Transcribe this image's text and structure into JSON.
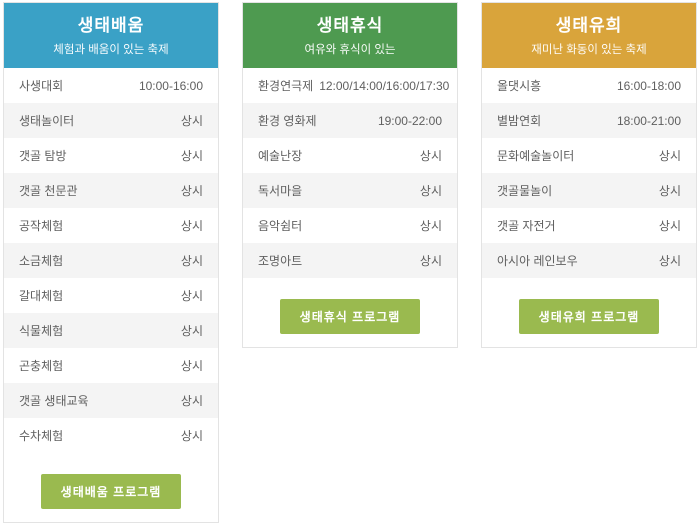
{
  "theme": {
    "page_background": "#ffffff",
    "button_color": "#9aba4f",
    "row_alt_color": "#f4f4f4",
    "row_text_color": "#5f5f5f",
    "card_border_color": "#e3e3e3",
    "always_label": "상시"
  },
  "columns": [
    {
      "id": "eco-learning",
      "title": "생태배움",
      "subtitle": "체험과 배움이 있는 축제",
      "header_color": "#3aa1c6",
      "button_label": "생태배움 프로그램",
      "rows": [
        {
          "label": "사생대회",
          "time": "10:00-16:00"
        },
        {
          "label": "생태놀이터",
          "time": "상시"
        },
        {
          "label": "갯골 탐방",
          "time": "상시"
        },
        {
          "label": "갯골 천문관",
          "time": "상시"
        },
        {
          "label": "공작체험",
          "time": "상시"
        },
        {
          "label": "소금체험",
          "time": "상시"
        },
        {
          "label": "갈대체험",
          "time": "상시"
        },
        {
          "label": "식물체험",
          "time": "상시"
        },
        {
          "label": "곤충체험",
          "time": "상시"
        },
        {
          "label": "갯골 생태교육",
          "time": "상시"
        },
        {
          "label": "수차체험",
          "time": "상시"
        }
      ]
    },
    {
      "id": "eco-rest",
      "title": "생태휴식",
      "subtitle": "여유와 휴식이 있는",
      "header_color": "#4e9a50",
      "button_label": "생태휴식 프로그램",
      "rows": [
        {
          "label": "환경연극제",
          "time": "12:00/14:00/16:00/17:30"
        },
        {
          "label": "환경 영화제",
          "time": "19:00-22:00"
        },
        {
          "label": "예술난장",
          "time": "상시"
        },
        {
          "label": "독서마을",
          "time": "상시"
        },
        {
          "label": "음악쉼터",
          "time": "상시"
        },
        {
          "label": "조명아트",
          "time": "상시"
        }
      ]
    },
    {
      "id": "eco-play",
      "title": "생태유희",
      "subtitle": "재미난 화동이 있는 축제",
      "header_color": "#d9a43b",
      "button_label": "생태유희 프로그램",
      "rows": [
        {
          "label": "올댓시흥",
          "time": "16:00-18:00"
        },
        {
          "label": "별밤연회",
          "time": "18:00-21:00"
        },
        {
          "label": "문화예술놀이터",
          "time": "상시"
        },
        {
          "label": "갯골물놀이",
          "time": "상시"
        },
        {
          "label": "갯골 자전거",
          "time": "상시"
        },
        {
          "label": "아시아 레인보우",
          "time": "상시"
        }
      ]
    }
  ]
}
